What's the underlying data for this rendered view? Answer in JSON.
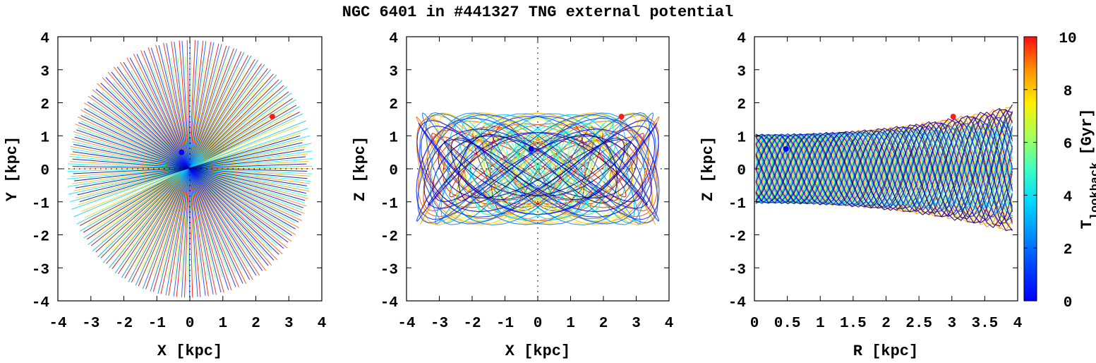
{
  "chart_data": {
    "title": "NGC 6401 in #441327 TNG external potential",
    "type": "scatter",
    "panels": [
      {
        "id": "xy",
        "xlabel": "X [kpc]",
        "ylabel": "Y [kpc]",
        "xlim": [
          -4,
          4
        ],
        "ylim": [
          -4,
          4
        ],
        "xticks": [
          "-4",
          "-3",
          "-2",
          "-1",
          "0",
          "1",
          "2",
          "3",
          "4"
        ],
        "yticks": [
          "-4",
          "-3",
          "-2",
          "-1",
          "0",
          "1",
          "2",
          "3",
          "4"
        ],
        "start_point": {
          "x": -0.25,
          "y": 0.5
        },
        "end_point": {
          "x": 2.5,
          "y": 1.58
        },
        "pattern": "radial rosette: orbits trace lines through the center, orientation precessing with lookback time; outer radius about 3.8 kpc"
      },
      {
        "id": "xz",
        "xlabel": "X [kpc]",
        "ylabel": "Z [kpc]",
        "xlim": [
          -4,
          4
        ],
        "ylim": [
          -4,
          4
        ],
        "xticks": [
          "-4",
          "-3",
          "-2",
          "-1",
          "0",
          "1",
          "2",
          "3",
          "4"
        ],
        "yticks": [
          "-4",
          "-3",
          "-2",
          "-1",
          "0",
          "1",
          "2",
          "3",
          "4"
        ],
        "start_point": {
          "x": -0.2,
          "y": 0.6
        },
        "end_point": {
          "x": 2.55,
          "y": 1.58
        },
        "pattern": "tangled loops within |X| < 3.7 kpc and |Z| < 2 kpc"
      },
      {
        "id": "rz",
        "xlabel": "R [kpc]",
        "ylabel": "Z [kpc]",
        "xlim": [
          0,
          4
        ],
        "ylim": [
          -4,
          4
        ],
        "xticks": [
          "0",
          "0.5",
          "1",
          "1.5",
          "2",
          "2.5",
          "3",
          "3.5",
          "4"
        ],
        "yticks": [
          "-4",
          "-3",
          "-2",
          "-1",
          "0",
          "1",
          "2",
          "3",
          "4"
        ],
        "start_point": {
          "x": 0.48,
          "y": 0.6
        },
        "end_point": {
          "x": 3.02,
          "y": 1.58
        },
        "pattern": "band |Z| < 1.05 at small R widening to |Z| up to 2 near R = 3.4, bounded at R about 3.95"
      }
    ],
    "colorbar": {
      "label": "T",
      "label_subscript": "lookback",
      "label_unit": "[Gyr]",
      "range": [
        0,
        10
      ],
      "ticks": [
        "0",
        "2",
        "4",
        "6",
        "8",
        "10"
      ],
      "colormap": "jet"
    },
    "colors": {
      "start_marker": "#0000ff",
      "end_marker": "#ff1a1a",
      "axis": "#000000"
    }
  }
}
